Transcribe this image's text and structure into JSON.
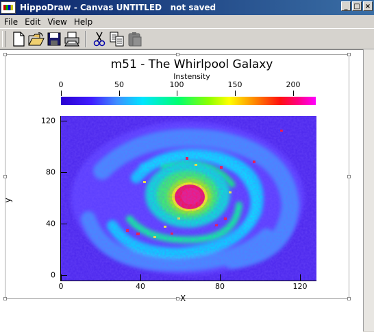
{
  "window": {
    "title": "HippoDraw - Canvas UNTITLED   not saved",
    "buttons": [
      "_",
      "□",
      "×"
    ]
  },
  "menu": [
    "File",
    "Edit",
    "View",
    "Help"
  ],
  "toolbar": {
    "icons": [
      "new-file-icon",
      "open-folder-icon",
      "save-disk-icon",
      "print-icon",
      "cut-scissors-icon",
      "copy-icon",
      "paste-icon"
    ]
  },
  "chart_data": {
    "type": "heatmap",
    "title": "m51 - The Whirlpool Galaxy",
    "colorbar_label": "Instensity",
    "colorbar_ticks": [
      "0",
      "50",
      "100",
      "150",
      "200"
    ],
    "zlim": [
      0,
      220
    ],
    "xlabel": "X",
    "ylabel": "y",
    "xlim": [
      0,
      128
    ],
    "ylim": [
      0,
      128
    ],
    "x_ticks": [
      "0",
      "40",
      "80",
      "120"
    ],
    "y_ticks": [
      "0",
      "40",
      "80",
      "120"
    ],
    "colors": [
      "#2a00d0",
      "#3f1dff",
      "#3f8fff",
      "#00e5ff",
      "#00ff70",
      "#8cff00",
      "#ffff00",
      "#ff8800",
      "#ff1010",
      "#ff0080",
      "#ff00ff"
    ]
  }
}
